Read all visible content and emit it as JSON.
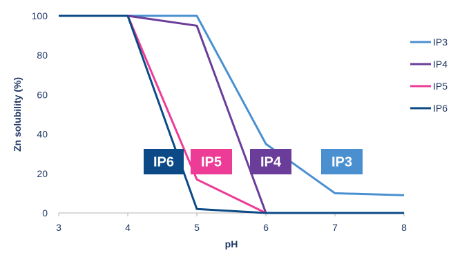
{
  "chart_data": {
    "type": "line",
    "xlabel": "pH",
    "ylabel": "Zn solubility (%)",
    "xlim": [
      3,
      8
    ],
    "ylim": [
      0,
      100
    ],
    "x_ticks": [
      3,
      4,
      5,
      6,
      7,
      8
    ],
    "y_ticks": [
      0,
      20,
      40,
      60,
      80,
      100
    ],
    "grid": false,
    "legend_position": "right",
    "series": [
      {
        "name": "IP3",
        "color": "#4a90d0",
        "points": [
          [
            3,
            100
          ],
          [
            5,
            100
          ],
          [
            6,
            35
          ],
          [
            7,
            10
          ],
          [
            8,
            9
          ]
        ]
      },
      {
        "name": "IP4",
        "color": "#6a3d9a",
        "points": [
          [
            3,
            100
          ],
          [
            4,
            100
          ],
          [
            5,
            95
          ],
          [
            6,
            0
          ],
          [
            8,
            0
          ]
        ]
      },
      {
        "name": "IP5",
        "color": "#ec3c96",
        "points": [
          [
            3,
            100
          ],
          [
            4,
            100
          ],
          [
            5,
            17
          ],
          [
            6,
            0
          ],
          [
            8,
            0
          ]
        ]
      },
      {
        "name": "IP6",
        "color": "#0b4a86",
        "points": [
          [
            3,
            100
          ],
          [
            4,
            100
          ],
          [
            5,
            2
          ],
          [
            6,
            0
          ],
          [
            8,
            0
          ]
        ]
      }
    ],
    "annotations": [
      {
        "text": "IP6",
        "color": "#0b4a86"
      },
      {
        "text": "IP5",
        "color": "#ec3c96"
      },
      {
        "text": "IP4",
        "color": "#6a3d9a"
      },
      {
        "text": "IP3",
        "color": "#4a90d0"
      }
    ]
  }
}
